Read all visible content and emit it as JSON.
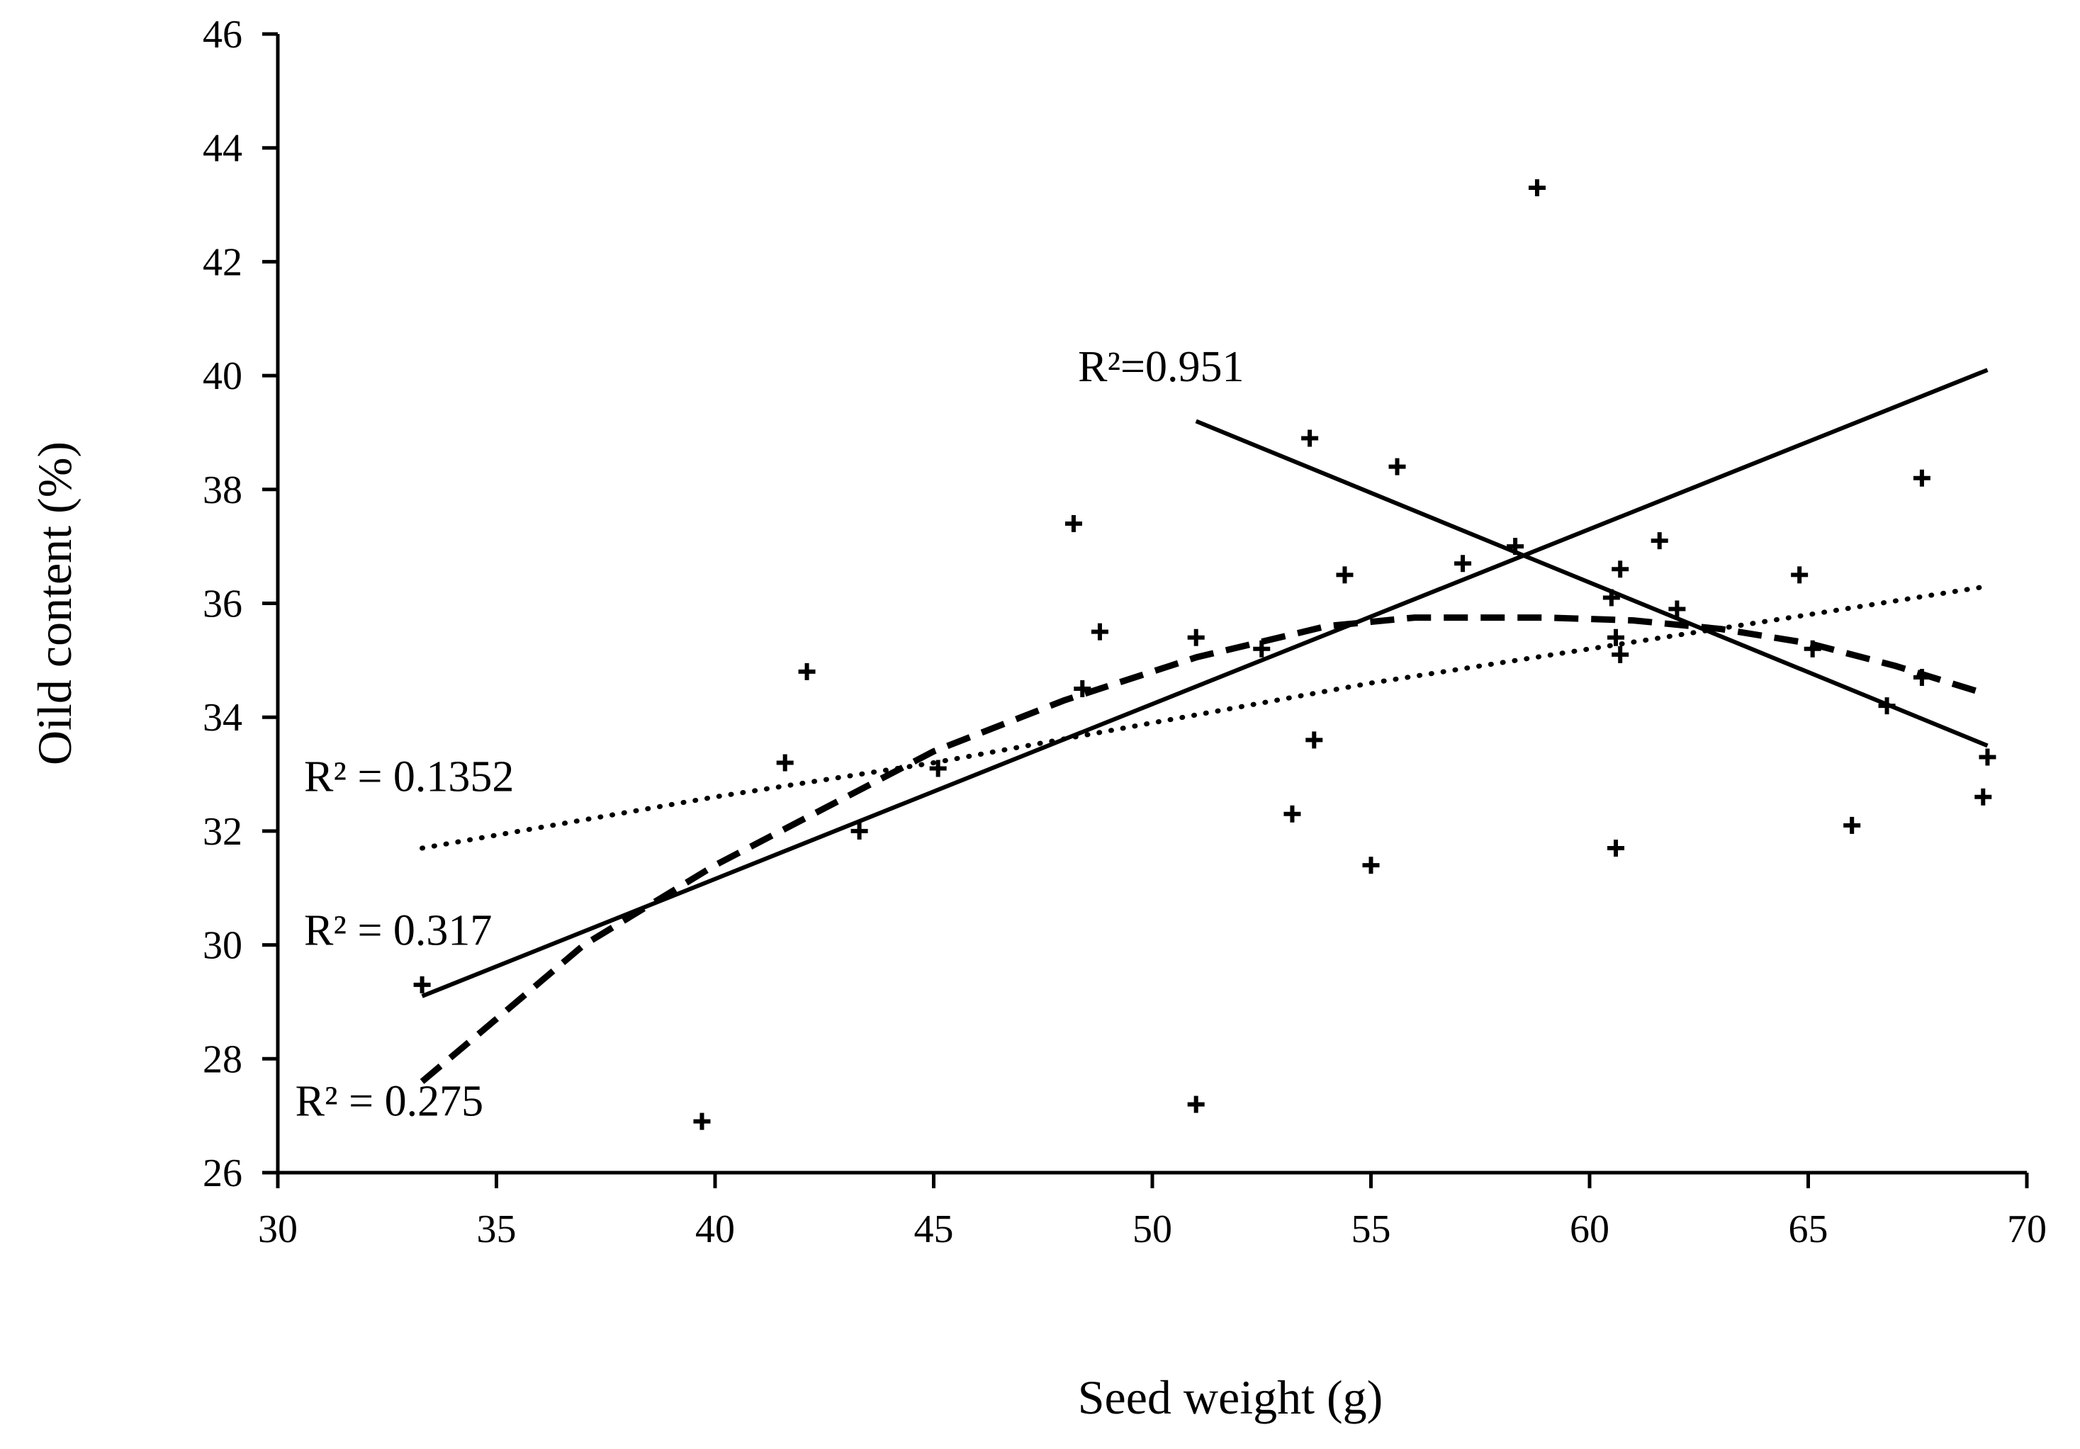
{
  "chart_data": {
    "type": "scatter",
    "title": "",
    "xlabel": "Seed weight (g)",
    "ylabel": "Oild content (%)",
    "xlim": [
      30,
      70
    ],
    "ylim": [
      26,
      46
    ],
    "xticks": [
      30,
      35,
      40,
      45,
      50,
      55,
      60,
      65,
      70
    ],
    "yticks": [
      26,
      28,
      30,
      32,
      34,
      36,
      38,
      40,
      42,
      44,
      46
    ],
    "grid": false,
    "legend": "none",
    "marker": "plus",
    "points": [
      {
        "x": 33.3,
        "y": 29.3
      },
      {
        "x": 39.7,
        "y": 26.9
      },
      {
        "x": 41.6,
        "y": 33.2
      },
      {
        "x": 42.1,
        "y": 34.8
      },
      {
        "x": 43.3,
        "y": 32.0
      },
      {
        "x": 45.1,
        "y": 33.1
      },
      {
        "x": 48.2,
        "y": 37.4
      },
      {
        "x": 48.4,
        "y": 34.5
      },
      {
        "x": 48.8,
        "y": 35.5
      },
      {
        "x": 51.0,
        "y": 35.4
      },
      {
        "x": 51.0,
        "y": 27.2
      },
      {
        "x": 52.5,
        "y": 35.2
      },
      {
        "x": 53.2,
        "y": 32.3
      },
      {
        "x": 53.6,
        "y": 38.9
      },
      {
        "x": 53.7,
        "y": 33.6
      },
      {
        "x": 54.4,
        "y": 36.5
      },
      {
        "x": 55.0,
        "y": 31.4
      },
      {
        "x": 55.6,
        "y": 38.4
      },
      {
        "x": 57.1,
        "y": 36.7
      },
      {
        "x": 58.3,
        "y": 37.0
      },
      {
        "x": 58.8,
        "y": 43.3
      },
      {
        "x": 60.5,
        "y": 36.1
      },
      {
        "x": 60.6,
        "y": 31.7
      },
      {
        "x": 60.6,
        "y": 35.4
      },
      {
        "x": 60.7,
        "y": 36.6
      },
      {
        "x": 60.7,
        "y": 35.1
      },
      {
        "x": 61.6,
        "y": 37.1
      },
      {
        "x": 62.0,
        "y": 35.9
      },
      {
        "x": 64.8,
        "y": 36.5
      },
      {
        "x": 65.1,
        "y": 35.2
      },
      {
        "x": 66.0,
        "y": 32.1
      },
      {
        "x": 66.8,
        "y": 34.2
      },
      {
        "x": 67.6,
        "y": 38.2
      },
      {
        "x": 67.6,
        "y": 34.7
      },
      {
        "x": 69.0,
        "y": 32.6
      },
      {
        "x": 69.1,
        "y": 33.3
      }
    ],
    "trendlines": [
      {
        "name": "linear-up",
        "style": "solid",
        "r2_label": "R² = 0.317",
        "label_anchor": [
          30.6,
          30.0
        ],
        "points": [
          [
            33.3,
            29.1
          ],
          [
            69.1,
            40.1
          ]
        ]
      },
      {
        "name": "linear-down",
        "style": "solid",
        "r2_label": "R²=0.951",
        "label_anchor": [
          48.3,
          39.9
        ],
        "points": [
          [
            51.0,
            39.2
          ],
          [
            69.1,
            33.5
          ]
        ]
      },
      {
        "name": "logarithmic",
        "style": "dotted",
        "r2_label": "R² = 0.1352",
        "label_anchor": [
          30.6,
          32.7
        ],
        "points": [
          [
            33.3,
            31.7
          ],
          [
            40,
            32.6
          ],
          [
            45,
            33.2
          ],
          [
            50,
            33.9
          ],
          [
            55,
            34.6
          ],
          [
            60,
            35.2
          ],
          [
            65,
            35.8
          ],
          [
            69.1,
            36.3
          ]
        ]
      },
      {
        "name": "polynomial",
        "style": "dashed",
        "r2_label": "R² = 0.275",
        "label_anchor": [
          30.4,
          27.0
        ],
        "points": [
          [
            33.3,
            27.6
          ],
          [
            35,
            28.7
          ],
          [
            37,
            30.0
          ],
          [
            40,
            31.4
          ],
          [
            42.5,
            32.4
          ],
          [
            45,
            33.4
          ],
          [
            48,
            34.3
          ],
          [
            51,
            35.05
          ],
          [
            54,
            35.6
          ],
          [
            56,
            35.75
          ],
          [
            59,
            35.75
          ],
          [
            61,
            35.7
          ],
          [
            63,
            35.55
          ],
          [
            65,
            35.3
          ],
          [
            67,
            34.9
          ],
          [
            69.1,
            34.4
          ]
        ]
      }
    ]
  }
}
